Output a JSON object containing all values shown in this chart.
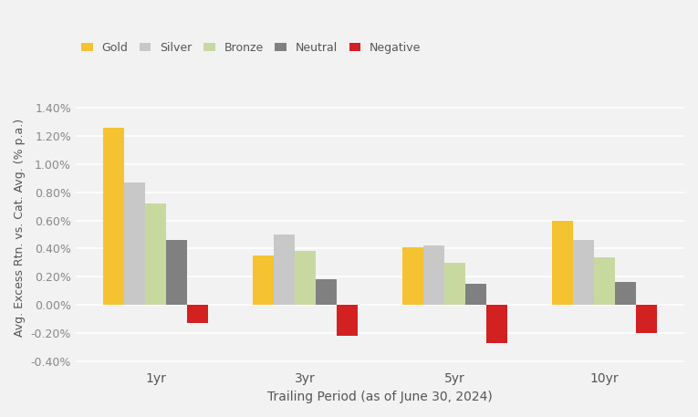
{
  "categories": [
    "1yr",
    "3yr",
    "5yr",
    "10yr"
  ],
  "series": {
    "Gold": [
      1.26,
      0.35,
      0.41,
      0.6
    ],
    "Silver": [
      0.87,
      0.5,
      0.42,
      0.46
    ],
    "Bronze": [
      0.72,
      0.38,
      0.3,
      0.34
    ],
    "Neutral": [
      0.46,
      0.18,
      0.15,
      0.16
    ],
    "Negative": [
      -0.13,
      -0.22,
      -0.27,
      -0.2
    ]
  },
  "colors": {
    "Gold": "#F5C232",
    "Silver": "#C8C8C8",
    "Bronze": "#C8D9A0",
    "Neutral": "#808080",
    "Negative": "#D32020"
  },
  "xlabel": "Trailing Period (as of June 30, 2024)",
  "ylabel": "Avg. Excess Rtn. vs. Cat. Avg. (% p.a.)",
  "ylim": [
    -0.45,
    1.55
  ],
  "yticks": [
    -0.4,
    -0.2,
    0.0,
    0.2,
    0.4,
    0.6,
    0.8,
    1.0,
    1.2,
    1.4
  ],
  "background_color": "#F2F2F2",
  "grid_color": "#FFFFFF",
  "bar_width": 0.14,
  "legend_order": [
    "Gold",
    "Silver",
    "Bronze",
    "Neutral",
    "Negative"
  ]
}
